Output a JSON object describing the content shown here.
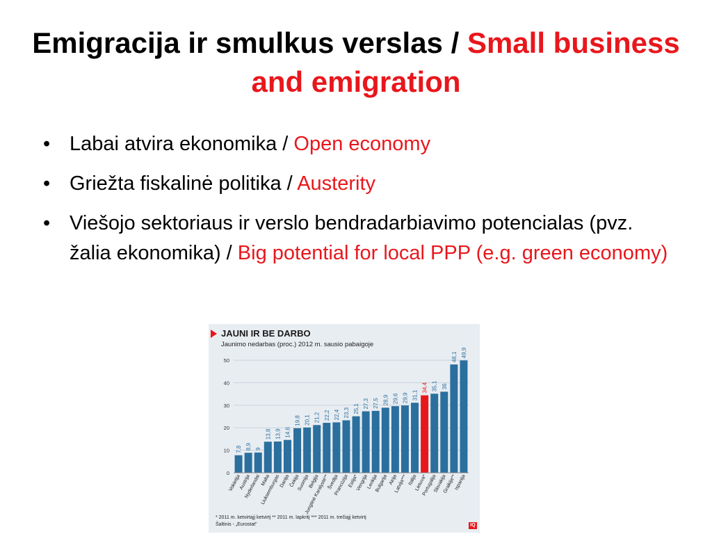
{
  "slide": {
    "title_black": "Emigracija ir smulkus verslas / ",
    "title_red": "Small business and emigration",
    "bullets": [
      {
        "text": "Labai atvira ekonomika / ",
        "red": "Open economy"
      },
      {
        "text": "Griežta fiskalinė politika / ",
        "red": "Austerity"
      },
      {
        "text": "Viešojo sektoriaus ir verslo bendradarbiavimo potencialas (pvz. žalia ekonomika) / ",
        "red": "Big potential for local PPP (e.g. green economy)"
      }
    ],
    "bullet_glyph": "•"
  },
  "figure": {
    "title": "JAUNI IR BE DARBO",
    "subtitle": "Jaunimo nedarbas (proc.) 2012 m. sausio pabaigoje",
    "notes_line1": "* 2011 m. ketvirtąjį ketvirtį    ** 2011 m. lapkritį    *** 2011 m. trečiąjį ketvirtį",
    "notes_line2": "Šaltinis - „Eurostat\"",
    "logo": "IQ"
  },
  "colors": {
    "bar": "#2a6f9e",
    "highlight": "#e8171c",
    "accent_text": "#e8171c"
  },
  "chart_data": {
    "type": "bar",
    "title": "JAUNI IR BE DARBO",
    "subtitle": "Jaunimo nedarbas (proc.) 2012 m. sausio pabaigoje",
    "categories": [
      "Vokietija",
      "Austrija",
      "Nyderlandai",
      "Malta",
      "Liuksemburgas",
      "Danija",
      "Čekija",
      "Suomija",
      "Belgija",
      "Jungtinė Karalystė**",
      "Švedija",
      "Prancūzija",
      "Estija*",
      "Vengrija",
      "Lenkija",
      "Bulgarija",
      "Airija",
      "Latvija***",
      "Italija",
      "Lietuva*",
      "Portugalija",
      "Slovakija",
      "Graikija**",
      "Ispanija"
    ],
    "values": [
      7.8,
      8.9,
      9,
      13.8,
      13.9,
      14.6,
      19.8,
      20.1,
      21.2,
      22.2,
      22.4,
      23.3,
      25.1,
      27.3,
      27.5,
      28.9,
      29.6,
      29.9,
      31.1,
      34.4,
      35.1,
      36,
      48.1,
      49.9
    ],
    "value_labels": [
      "7,8",
      "8,9",
      "9",
      "13,8",
      "13,9",
      "14,6",
      "19,8",
      "20,1",
      "21,2",
      "22,2",
      "22,4",
      "23,3",
      "25,1",
      "27,3",
      "27,5",
      "28,9",
      "29,6",
      "29,9",
      "31,1",
      "34,4",
      "35,1",
      "36",
      "48,1",
      "49,9"
    ],
    "highlight_index": 19,
    "yticks": [
      "0",
      "10",
      "20",
      "30",
      "40",
      "50"
    ],
    "ylim": [
      0,
      50
    ],
    "grid": true
  }
}
